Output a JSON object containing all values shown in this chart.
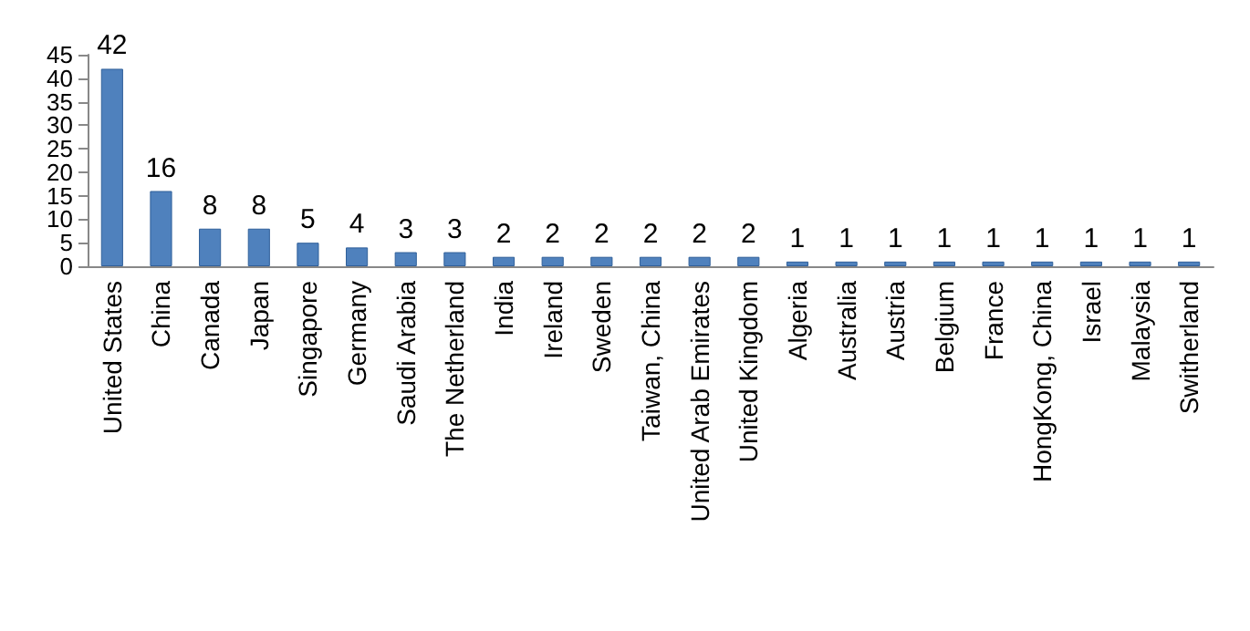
{
  "chart_data": {
    "type": "bar",
    "categories": [
      "United States",
      "China",
      "Canada",
      "Japan",
      "Singapore",
      "Germany",
      "Saudi Arabia",
      "The Netherland",
      "India",
      "Ireland",
      "Sweden",
      "Taiwan, China",
      "United Arab Emirates",
      "United Kingdom",
      "Algeria",
      "Australia",
      "Austria",
      "Belgium",
      "France",
      "HongKong, China",
      "Israel",
      "Malaysia",
      "Switherland"
    ],
    "values": [
      42,
      16,
      8,
      8,
      5,
      4,
      3,
      3,
      2,
      2,
      2,
      2,
      2,
      2,
      1,
      1,
      1,
      1,
      1,
      1,
      1,
      1,
      1
    ],
    "color": "#4f81bd",
    "ylim": [
      0,
      45
    ],
    "yticks": [
      0,
      5,
      10,
      15,
      20,
      25,
      30,
      35,
      40,
      45
    ],
    "grid": false,
    "data_labels": true
  }
}
